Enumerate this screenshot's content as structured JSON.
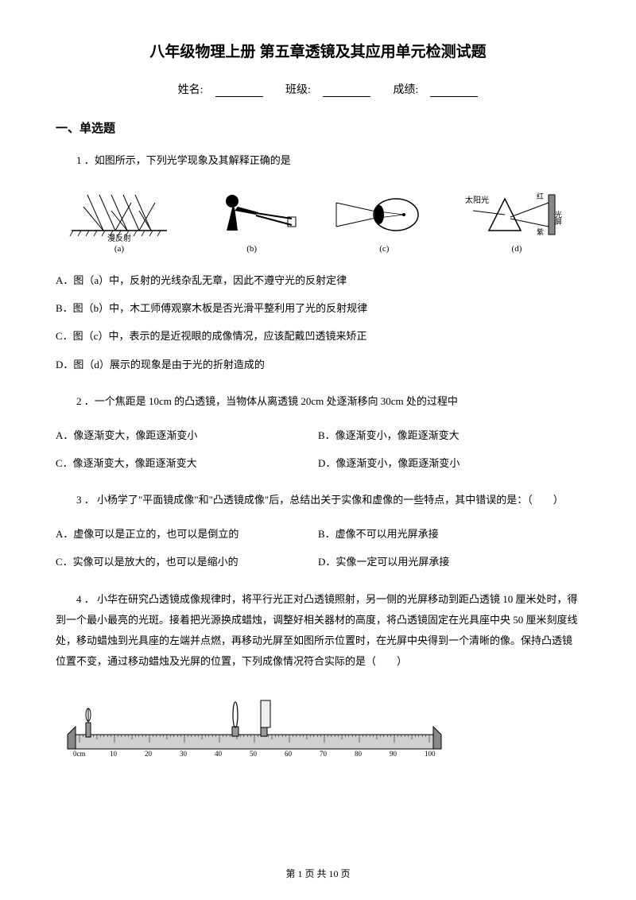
{
  "title": "八年级物理上册 第五章透镜及其应用单元检测试题",
  "header": {
    "name_label": "姓名:",
    "class_label": "班级:",
    "score_label": "成绩:"
  },
  "section1": {
    "heading": "一、单选题"
  },
  "q1": {
    "stem": "1 ．如图所示，下列光学现象及其解释正确的是",
    "diagrams": {
      "a_label": "(a)",
      "a_caption": "漫反射",
      "b_label": "(b)",
      "c_label": "(c)",
      "d_label": "(d)",
      "d_text_sun": "太阳光",
      "d_text_red": "红",
      "d_text_purple": "紫",
      "d_text_screen": "光屏"
    },
    "optA": "A．图（a）中，反射的光线杂乱无章，因此不遵守光的反射定律",
    "optB": "B．图（b）中，木工师傅观察木板是否光滑平整利用了光的反射规律",
    "optC": "C．图（c）中，表示的是近视眼的成像情况，应该配戴凹透镜来矫正",
    "optD": "D．图（d）展示的现象是由于光的折射造成的"
  },
  "q2": {
    "stem": "2 ．一个焦距是 10cm 的凸透镜，当物体从离透镜 20cm 处逐渐移向 30cm 处的过程中",
    "optA": "A．像逐渐变大，像距逐渐变小",
    "optB": "B．像逐渐变小，像距逐渐变大",
    "optC": "C．像逐渐变大，像距逐渐变大",
    "optD": "D．像逐渐变小，像距逐渐变小"
  },
  "q3": {
    "stem": "3 ． 小杨学了\"平面镜成像\"和\"凸透镜成像\"后，总结出关于实像和虚像的一些特点，其中错误的是：（　　）",
    "optA": "A．虚像可以是正立的，也可以是倒立的",
    "optB": "B．虚像不可以用光屏承接",
    "optC": "C．实像可以是放大的，也可以是缩小的",
    "optD": "D．实像一定可以用光屏承接"
  },
  "q4": {
    "stem": "4 ． 小华在研究凸透镜成像规律时，将平行光正对凸透镜照射，另一侧的光屏移动到距凸透镜 10 厘米处时，得到一个最小最亮的光斑。接着把光源换成蜡烛，调整好相关器材的高度，将凸透镜固定在光具座中央 50 厘米刻度线处，移动蜡烛到光具座的左端并点燃，再移动光屏至如图所示位置时，在光屏中央得到一个清晰的像。保持凸透镜位置不变，通过移动蜡烛及光屏的位置，下列成像情况符合实际的是（　　）",
    "ruler_labels": [
      "0cm",
      "10",
      "20",
      "30",
      "40",
      "50",
      "60",
      "70",
      "80",
      "90",
      "100"
    ]
  },
  "footer": {
    "text": "第 1 页 共 10 页"
  }
}
